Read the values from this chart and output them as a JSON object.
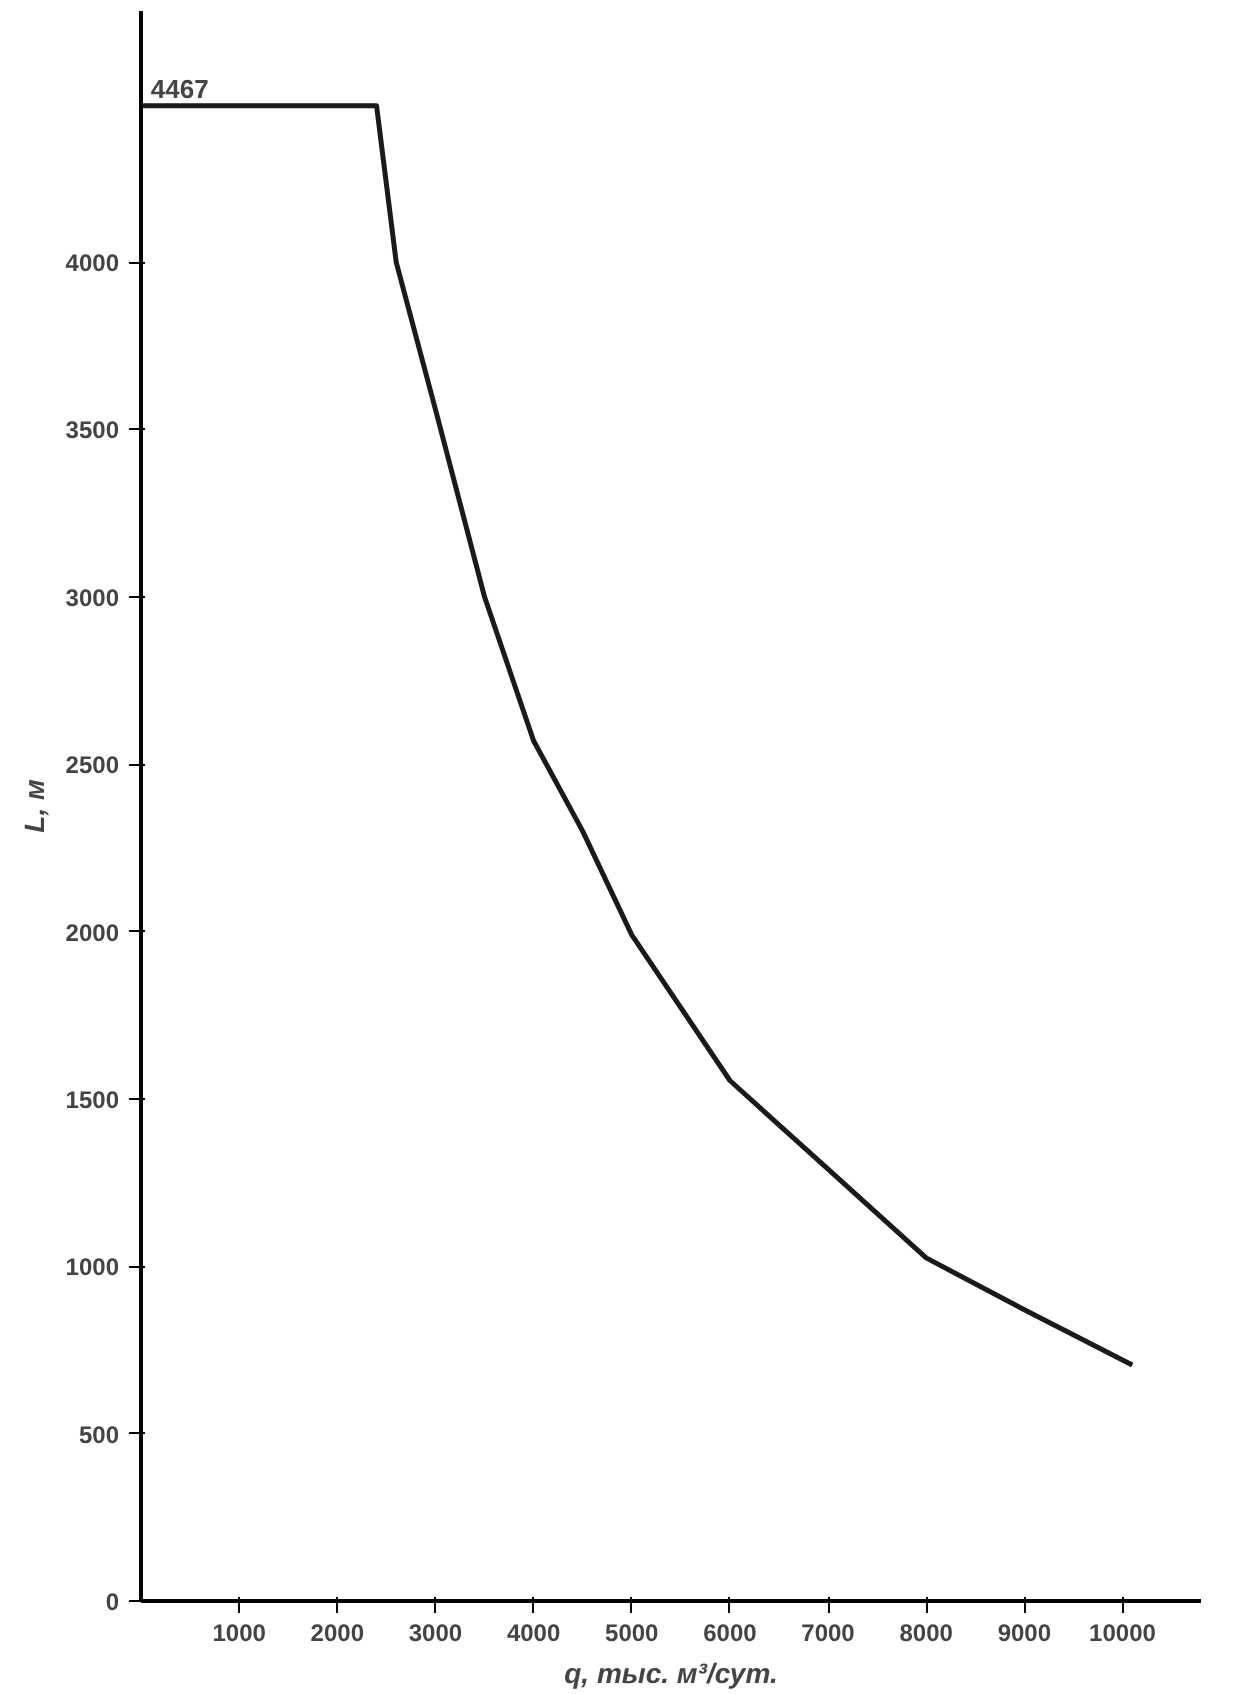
{
  "chart_data": {
    "type": "line",
    "xlabel": "q, тыс. м³/сут.",
    "ylabel": "L, м",
    "x": [
      0,
      2400,
      2600,
      3000,
      3500,
      4000,
      4500,
      5000,
      6000,
      7000,
      8000,
      9000,
      10100
    ],
    "series": [
      {
        "color": "#1a1a1a",
        "values": [
          4467,
          4467,
          4000,
          3560,
          3000,
          2570,
          2300,
          1990,
          1555,
          1290,
          1025,
          870,
          705
        ]
      }
    ],
    "annotations": [
      {
        "text": "4467",
        "x": 100,
        "y": 4467
      }
    ],
    "xlim": [
      0,
      10800
    ],
    "ylim": [
      0,
      4750
    ],
    "xticks": [
      1000,
      2000,
      3000,
      4000,
      5000,
      6000,
      7000,
      8000,
      9000,
      10000
    ],
    "yticks": [
      0,
      500,
      1000,
      1500,
      2000,
      2500,
      3000,
      3500,
      4000
    ],
    "grid": false,
    "marker": "none",
    "line_style": "solid"
  }
}
